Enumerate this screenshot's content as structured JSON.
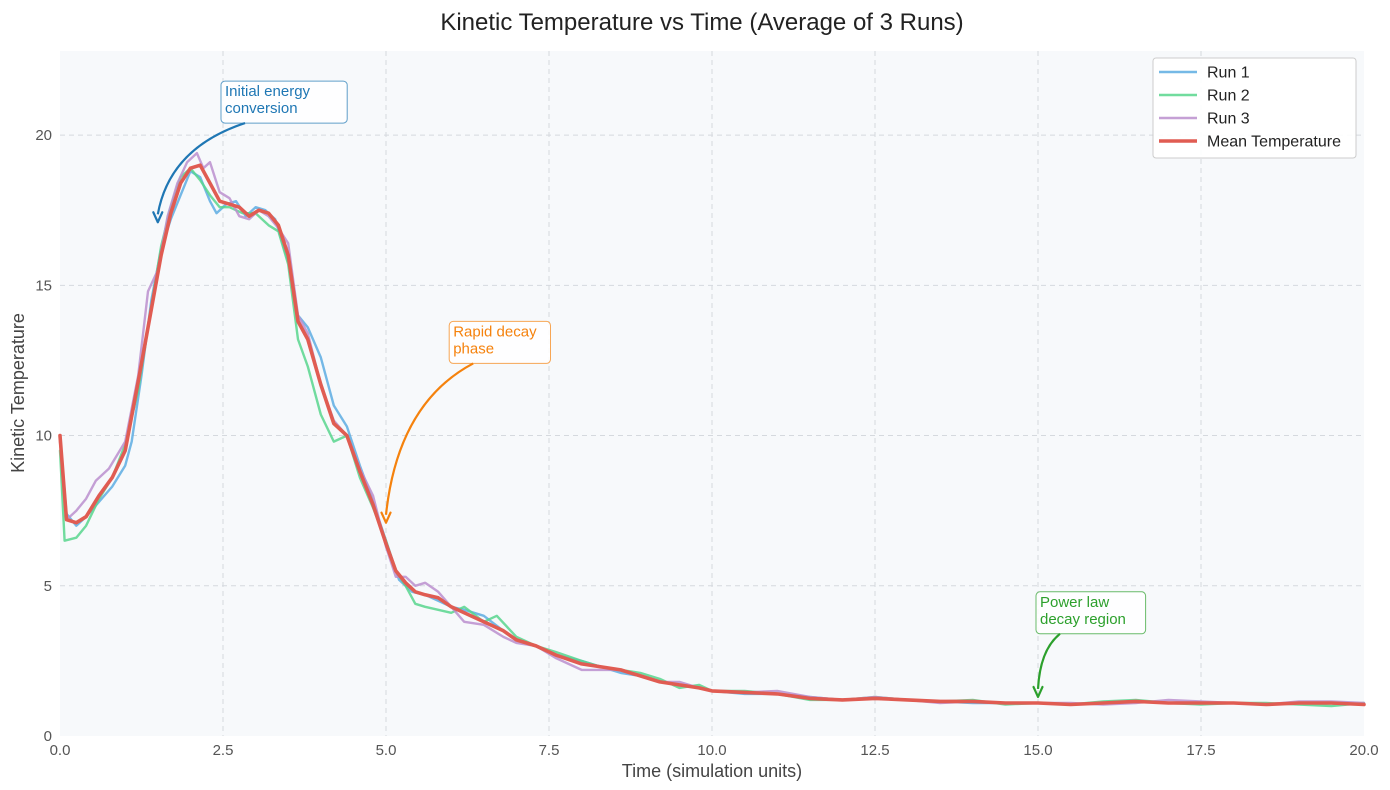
{
  "chart_data": {
    "type": "line",
    "title": "Kinetic Temperature vs Time (Average of 3 Runs)",
    "xlabel": "Time (simulation units)",
    "ylabel": "Kinetic Temperature",
    "xlim": [
      0,
      20
    ],
    "ylim": [
      0,
      22.8
    ],
    "xticks": [
      0,
      2.5,
      5,
      7.5,
      10,
      12.5,
      15,
      17.5,
      20
    ],
    "xtick_labels": [
      "0.0",
      "2.5",
      "5.0",
      "7.5",
      "10.0",
      "12.5",
      "15.0",
      "17.5",
      "20.0"
    ],
    "yticks": [
      0,
      5,
      10,
      15,
      20
    ],
    "ytick_labels": [
      "0",
      "5",
      "10",
      "15",
      "20"
    ],
    "grid": true,
    "legend_position": "top-right",
    "series": [
      {
        "name": "Run 1",
        "color": "#5dade2",
        "points": [
          [
            0,
            10.0
          ],
          [
            0.1,
            7.4
          ],
          [
            0.25,
            7.0
          ],
          [
            0.4,
            7.3
          ],
          [
            0.6,
            7.8
          ],
          [
            0.8,
            8.3
          ],
          [
            1.0,
            9.0
          ],
          [
            1.1,
            9.8
          ],
          [
            1.25,
            12.0
          ],
          [
            1.4,
            14.5
          ],
          [
            1.55,
            16.2
          ],
          [
            1.7,
            17.2
          ],
          [
            1.85,
            18.0
          ],
          [
            2.0,
            18.8
          ],
          [
            2.15,
            18.6
          ],
          [
            2.3,
            17.8
          ],
          [
            2.4,
            17.4
          ],
          [
            2.55,
            17.7
          ],
          [
            2.7,
            17.8
          ],
          [
            2.85,
            17.3
          ],
          [
            3.0,
            17.6
          ],
          [
            3.15,
            17.5
          ],
          [
            3.3,
            17.2
          ],
          [
            3.5,
            15.8
          ],
          [
            3.65,
            14.0
          ],
          [
            3.8,
            13.6
          ],
          [
            4.0,
            12.6
          ],
          [
            4.2,
            11.0
          ],
          [
            4.4,
            10.3
          ],
          [
            4.6,
            9.0
          ],
          [
            4.8,
            7.8
          ],
          [
            5.0,
            6.5
          ],
          [
            5.2,
            5.2
          ],
          [
            5.4,
            4.8
          ],
          [
            5.6,
            4.7
          ],
          [
            5.8,
            4.5
          ],
          [
            6.0,
            4.3
          ],
          [
            6.2,
            4.2
          ],
          [
            6.5,
            4.0
          ],
          [
            6.8,
            3.5
          ],
          [
            7.0,
            3.2
          ],
          [
            7.3,
            3.0
          ],
          [
            7.6,
            2.7
          ],
          [
            8.0,
            2.5
          ],
          [
            8.3,
            2.3
          ],
          [
            8.6,
            2.1
          ],
          [
            8.9,
            2.0
          ],
          [
            9.2,
            1.8
          ],
          [
            9.5,
            1.7
          ],
          [
            9.8,
            1.6
          ],
          [
            10.0,
            1.5
          ],
          [
            10.5,
            1.4
          ],
          [
            11.0,
            1.4
          ],
          [
            11.5,
            1.3
          ],
          [
            12.0,
            1.2
          ],
          [
            12.5,
            1.25
          ],
          [
            13.0,
            1.2
          ],
          [
            13.5,
            1.15
          ],
          [
            14.0,
            1.1
          ],
          [
            14.5,
            1.1
          ],
          [
            15.0,
            1.1
          ],
          [
            15.5,
            1.05
          ],
          [
            16.0,
            1.1
          ],
          [
            16.5,
            1.15
          ],
          [
            17.0,
            1.1
          ],
          [
            17.5,
            1.1
          ],
          [
            18.0,
            1.1
          ],
          [
            18.5,
            1.05
          ],
          [
            19.0,
            1.1
          ],
          [
            19.5,
            1.1
          ],
          [
            20.0,
            1.05
          ]
        ]
      },
      {
        "name": "Run 2",
        "color": "#58d68d",
        "points": [
          [
            0,
            9.5
          ],
          [
            0.07,
            6.5
          ],
          [
            0.25,
            6.6
          ],
          [
            0.4,
            7.0
          ],
          [
            0.6,
            7.9
          ],
          [
            0.8,
            8.6
          ],
          [
            1.0,
            9.7
          ],
          [
            1.2,
            11.5
          ],
          [
            1.4,
            14.3
          ],
          [
            1.55,
            16.3
          ],
          [
            1.7,
            17.6
          ],
          [
            1.85,
            18.6
          ],
          [
            2.0,
            18.9
          ],
          [
            2.15,
            18.5
          ],
          [
            2.3,
            18.0
          ],
          [
            2.45,
            17.6
          ],
          [
            2.6,
            17.6
          ],
          [
            2.8,
            17.4
          ],
          [
            3.0,
            17.4
          ],
          [
            3.2,
            17.0
          ],
          [
            3.35,
            16.8
          ],
          [
            3.5,
            15.7
          ],
          [
            3.65,
            13.2
          ],
          [
            3.8,
            12.3
          ],
          [
            4.0,
            10.7
          ],
          [
            4.2,
            9.8
          ],
          [
            4.4,
            10.0
          ],
          [
            4.6,
            8.6
          ],
          [
            4.8,
            7.6
          ],
          [
            5.0,
            6.5
          ],
          [
            5.15,
            5.5
          ],
          [
            5.3,
            5.0
          ],
          [
            5.45,
            4.4
          ],
          [
            5.6,
            4.3
          ],
          [
            5.8,
            4.2
          ],
          [
            6.0,
            4.1
          ],
          [
            6.2,
            4.3
          ],
          [
            6.5,
            3.8
          ],
          [
            6.7,
            4.0
          ],
          [
            7.0,
            3.3
          ],
          [
            7.3,
            3.0
          ],
          [
            7.6,
            2.8
          ],
          [
            8.0,
            2.5
          ],
          [
            8.3,
            2.3
          ],
          [
            8.6,
            2.2
          ],
          [
            8.9,
            2.1
          ],
          [
            9.2,
            1.9
          ],
          [
            9.5,
            1.6
          ],
          [
            9.8,
            1.7
          ],
          [
            10.0,
            1.5
          ],
          [
            10.5,
            1.5
          ],
          [
            11.0,
            1.4
          ],
          [
            11.5,
            1.2
          ],
          [
            12.0,
            1.2
          ],
          [
            12.5,
            1.3
          ],
          [
            13.0,
            1.2
          ],
          [
            13.5,
            1.15
          ],
          [
            14.0,
            1.2
          ],
          [
            14.5,
            1.05
          ],
          [
            15.0,
            1.1
          ],
          [
            15.5,
            1.05
          ],
          [
            16.0,
            1.15
          ],
          [
            16.5,
            1.2
          ],
          [
            17.0,
            1.1
          ],
          [
            17.5,
            1.05
          ],
          [
            18.0,
            1.1
          ],
          [
            18.5,
            1.1
          ],
          [
            19.0,
            1.05
          ],
          [
            19.5,
            1.0
          ],
          [
            20.0,
            1.1
          ]
        ]
      },
      {
        "name": "Run 3",
        "color": "#bb8fce",
        "points": [
          [
            0,
            9.8
          ],
          [
            0.1,
            7.2
          ],
          [
            0.25,
            7.5
          ],
          [
            0.4,
            7.9
          ],
          [
            0.55,
            8.5
          ],
          [
            0.75,
            8.9
          ],
          [
            1.0,
            9.8
          ],
          [
            1.2,
            12.0
          ],
          [
            1.35,
            14.8
          ],
          [
            1.5,
            15.5
          ],
          [
            1.65,
            17.3
          ],
          [
            1.8,
            18.4
          ],
          [
            1.95,
            19.1
          ],
          [
            2.1,
            19.4
          ],
          [
            2.2,
            18.9
          ],
          [
            2.3,
            19.1
          ],
          [
            2.45,
            18.1
          ],
          [
            2.6,
            17.9
          ],
          [
            2.75,
            17.3
          ],
          [
            2.9,
            17.2
          ],
          [
            3.05,
            17.5
          ],
          [
            3.2,
            17.3
          ],
          [
            3.35,
            16.9
          ],
          [
            3.5,
            16.4
          ],
          [
            3.65,
            14.0
          ],
          [
            3.8,
            13.4
          ],
          [
            4.0,
            11.7
          ],
          [
            4.2,
            10.5
          ],
          [
            4.4,
            10.0
          ],
          [
            4.6,
            8.9
          ],
          [
            4.8,
            8.0
          ],
          [
            5.0,
            6.3
          ],
          [
            5.15,
            5.3
          ],
          [
            5.3,
            5.3
          ],
          [
            5.45,
            5.0
          ],
          [
            5.6,
            5.1
          ],
          [
            5.8,
            4.8
          ],
          [
            6.0,
            4.3
          ],
          [
            6.2,
            3.8
          ],
          [
            6.5,
            3.7
          ],
          [
            6.8,
            3.3
          ],
          [
            7.0,
            3.1
          ],
          [
            7.3,
            3.0
          ],
          [
            7.6,
            2.6
          ],
          [
            8.0,
            2.2
          ],
          [
            8.3,
            2.2
          ],
          [
            8.6,
            2.2
          ],
          [
            8.9,
            2.0
          ],
          [
            9.2,
            1.8
          ],
          [
            9.5,
            1.8
          ],
          [
            9.8,
            1.6
          ],
          [
            10.0,
            1.5
          ],
          [
            10.5,
            1.45
          ],
          [
            11.0,
            1.5
          ],
          [
            11.5,
            1.3
          ],
          [
            12.0,
            1.2
          ],
          [
            12.5,
            1.3
          ],
          [
            13.0,
            1.2
          ],
          [
            13.5,
            1.1
          ],
          [
            14.0,
            1.15
          ],
          [
            14.5,
            1.1
          ],
          [
            15.0,
            1.1
          ],
          [
            15.5,
            1.1
          ],
          [
            16.0,
            1.05
          ],
          [
            16.5,
            1.1
          ],
          [
            17.0,
            1.2
          ],
          [
            17.5,
            1.15
          ],
          [
            18.0,
            1.1
          ],
          [
            18.5,
            1.05
          ],
          [
            19.0,
            1.15
          ],
          [
            19.5,
            1.15
          ],
          [
            20.0,
            1.1
          ]
        ]
      },
      {
        "name": "Mean Temperature",
        "color": "#e05c52",
        "points": [
          [
            0,
            10.0
          ],
          [
            0.1,
            7.2
          ],
          [
            0.25,
            7.1
          ],
          [
            0.4,
            7.3
          ],
          [
            0.6,
            8.0
          ],
          [
            0.8,
            8.6
          ],
          [
            1.0,
            9.5
          ],
          [
            1.2,
            11.8
          ],
          [
            1.4,
            14.2
          ],
          [
            1.55,
            16.0
          ],
          [
            1.7,
            17.4
          ],
          [
            1.85,
            18.4
          ],
          [
            2.0,
            18.9
          ],
          [
            2.15,
            19.0
          ],
          [
            2.3,
            18.4
          ],
          [
            2.45,
            17.8
          ],
          [
            2.6,
            17.7
          ],
          [
            2.75,
            17.6
          ],
          [
            2.9,
            17.3
          ],
          [
            3.05,
            17.5
          ],
          [
            3.2,
            17.4
          ],
          [
            3.35,
            17.0
          ],
          [
            3.5,
            16.0
          ],
          [
            3.65,
            13.8
          ],
          [
            3.8,
            13.2
          ],
          [
            4.0,
            11.7
          ],
          [
            4.2,
            10.4
          ],
          [
            4.4,
            10.0
          ],
          [
            4.6,
            8.8
          ],
          [
            4.8,
            7.7
          ],
          [
            5.0,
            6.4
          ],
          [
            5.15,
            5.5
          ],
          [
            5.3,
            5.1
          ],
          [
            5.45,
            4.8
          ],
          [
            5.6,
            4.7
          ],
          [
            5.8,
            4.6
          ],
          [
            6.0,
            4.3
          ],
          [
            6.2,
            4.1
          ],
          [
            6.5,
            3.8
          ],
          [
            6.8,
            3.5
          ],
          [
            7.0,
            3.2
          ],
          [
            7.3,
            3.0
          ],
          [
            7.6,
            2.7
          ],
          [
            8.0,
            2.4
          ],
          [
            8.3,
            2.3
          ],
          [
            8.6,
            2.2
          ],
          [
            8.9,
            2.0
          ],
          [
            9.2,
            1.8
          ],
          [
            9.5,
            1.7
          ],
          [
            9.8,
            1.6
          ],
          [
            10.0,
            1.5
          ],
          [
            10.5,
            1.45
          ],
          [
            11.0,
            1.4
          ],
          [
            11.5,
            1.25
          ],
          [
            12.0,
            1.2
          ],
          [
            12.5,
            1.25
          ],
          [
            13.0,
            1.2
          ],
          [
            13.5,
            1.15
          ],
          [
            14.0,
            1.15
          ],
          [
            14.5,
            1.1
          ],
          [
            15.0,
            1.1
          ],
          [
            15.5,
            1.05
          ],
          [
            16.0,
            1.1
          ],
          [
            16.5,
            1.15
          ],
          [
            17.0,
            1.1
          ],
          [
            17.5,
            1.1
          ],
          [
            18.0,
            1.1
          ],
          [
            18.5,
            1.05
          ],
          [
            19.0,
            1.1
          ],
          [
            19.5,
            1.1
          ],
          [
            20.0,
            1.05
          ]
        ]
      }
    ],
    "annotations": [
      {
        "text": "Initial energy\nconversion",
        "color": "#1f77b4",
        "text_at": [
          2.5,
          21.3
        ],
        "points_to": [
          1.5,
          17.1
        ]
      },
      {
        "text": "Rapid decay\nphase",
        "color": "#f5820d",
        "text_at": [
          6.0,
          13.3
        ],
        "points_to": [
          5.0,
          7.1
        ]
      },
      {
        "text": "Power law\ndecay region",
        "color": "#2ca02c",
        "text_at": [
          15.0,
          4.3
        ],
        "points_to": [
          15.0,
          1.3
        ]
      }
    ]
  }
}
